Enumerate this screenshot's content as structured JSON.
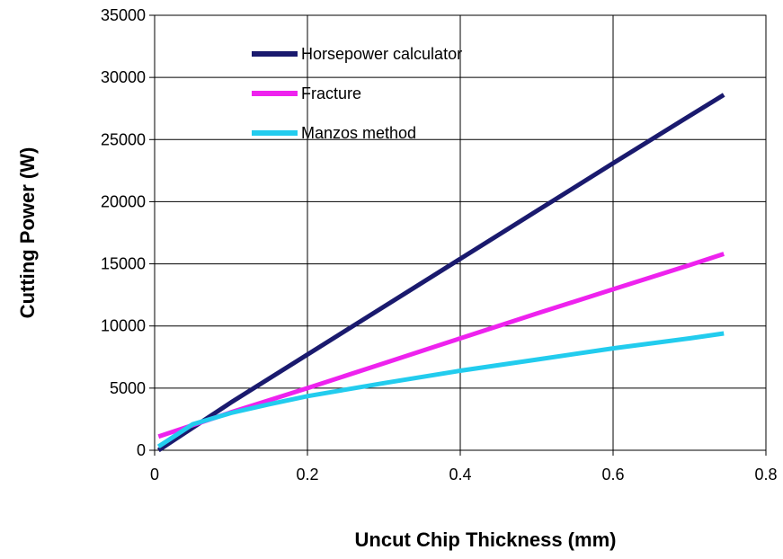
{
  "chart_data": {
    "type": "line",
    "xlabel": "Uncut Chip Thickness (mm)",
    "ylabel": "Cutting Power (W)",
    "xlim": [
      0,
      0.8
    ],
    "ylim": [
      0,
      35000
    ],
    "x_ticks": [
      "0",
      "0.2",
      "0.4",
      "0.6",
      "0.8"
    ],
    "y_ticks": [
      "0",
      "5000",
      "10000",
      "15000",
      "20000",
      "25000",
      "30000",
      "35000"
    ],
    "grid": true,
    "legend_position": "top-left",
    "series": [
      {
        "name": "Horsepower calculator",
        "color": "#1a1a6e",
        "x": [
          0.005,
          0.1,
          0.2,
          0.3,
          0.4,
          0.5,
          0.6,
          0.7,
          0.745
        ],
        "y": [
          0,
          3850,
          7700,
          11550,
          15400,
          19250,
          23100,
          26900,
          28600
        ]
      },
      {
        "name": "Fracture",
        "color": "#ee22ee",
        "x": [
          0.005,
          0.1,
          0.2,
          0.3,
          0.4,
          0.5,
          0.6,
          0.7,
          0.745
        ],
        "y": [
          1100,
          3050,
          5000,
          7000,
          9000,
          11000,
          12950,
          14900,
          15800
        ]
      },
      {
        "name": "Manzos method",
        "color": "#22ccee",
        "x": [
          0.005,
          0.05,
          0.1,
          0.15,
          0.2,
          0.3,
          0.4,
          0.5,
          0.6,
          0.7,
          0.745
        ],
        "y": [
          300,
          2100,
          3000,
          3700,
          4350,
          5400,
          6400,
          7300,
          8200,
          9000,
          9400
        ]
      }
    ]
  }
}
